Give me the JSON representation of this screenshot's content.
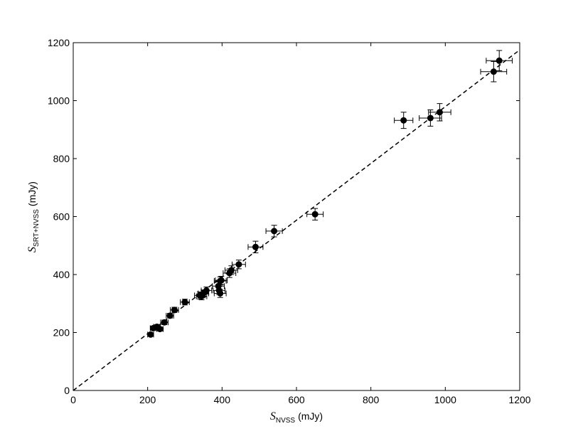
{
  "chart_data": {
    "type": "scatter",
    "x_label": {
      "symbol": "S",
      "subscript": "NVSS",
      "unit": "(mJy)"
    },
    "y_label": {
      "symbol": "S",
      "subscript": "SRT+NVSS",
      "unit": "(mJy)"
    },
    "xlim": [
      0,
      1200
    ],
    "ylim": [
      0,
      1200
    ],
    "xticks": [
      0,
      200,
      400,
      600,
      800,
      1000,
      1200
    ],
    "yticks": [
      0,
      200,
      400,
      600,
      800,
      1000,
      1200
    ],
    "series": [
      {
        "color": "#000000",
        "x": [
          208,
          215,
          225,
          233,
          245,
          260,
          272,
          300,
          340,
          345,
          350,
          358,
          390,
          392,
          395,
          395,
          398,
          420,
          425,
          445,
          490,
          540,
          650,
          888,
          960,
          985,
          1130,
          1145
        ],
        "values": [
          193,
          215,
          220,
          212,
          235,
          258,
          278,
          305,
          328,
          325,
          335,
          345,
          360,
          345,
          335,
          378,
          380,
          405,
          415,
          435,
          495,
          550,
          608,
          932,
          940,
          960,
          1100,
          1138
        ],
        "xerr": [
          8,
          8,
          9,
          9,
          10,
          10,
          11,
          12,
          14,
          14,
          14,
          14,
          16,
          16,
          16,
          16,
          16,
          17,
          17,
          18,
          20,
          22,
          22,
          25,
          30,
          30,
          35,
          35
        ],
        "yerr": [
          6,
          7,
          7,
          7,
          8,
          8,
          9,
          10,
          12,
          12,
          12,
          12,
          14,
          14,
          14,
          14,
          14,
          15,
          15,
          15,
          20,
          20,
          20,
          28,
          28,
          30,
          35,
          35
        ]
      }
    ],
    "fit_line": {
      "x": [
        0,
        1200
      ],
      "y": [
        0,
        1175
      ],
      "dash": true
    }
  }
}
